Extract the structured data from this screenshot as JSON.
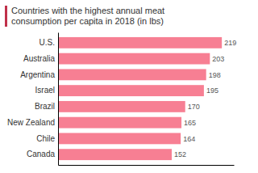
{
  "chart_data": {
    "type": "bar",
    "orientation": "horizontal",
    "title": [
      "Countries with the highest annual meat",
      "consumption per capita in 2018 (in lbs)"
    ],
    "categories": [
      "U.S.",
      "Australia",
      "Argentina",
      "Israel",
      "Brazil",
      "New Zealand",
      "Chile",
      "Canada"
    ],
    "values": [
      219,
      203,
      198,
      195,
      170,
      165,
      164,
      152
    ],
    "color": "#f77f93",
    "xlim": [
      0,
      235
    ],
    "data_labels": true,
    "tick_labels": "y",
    "grid": false
  }
}
